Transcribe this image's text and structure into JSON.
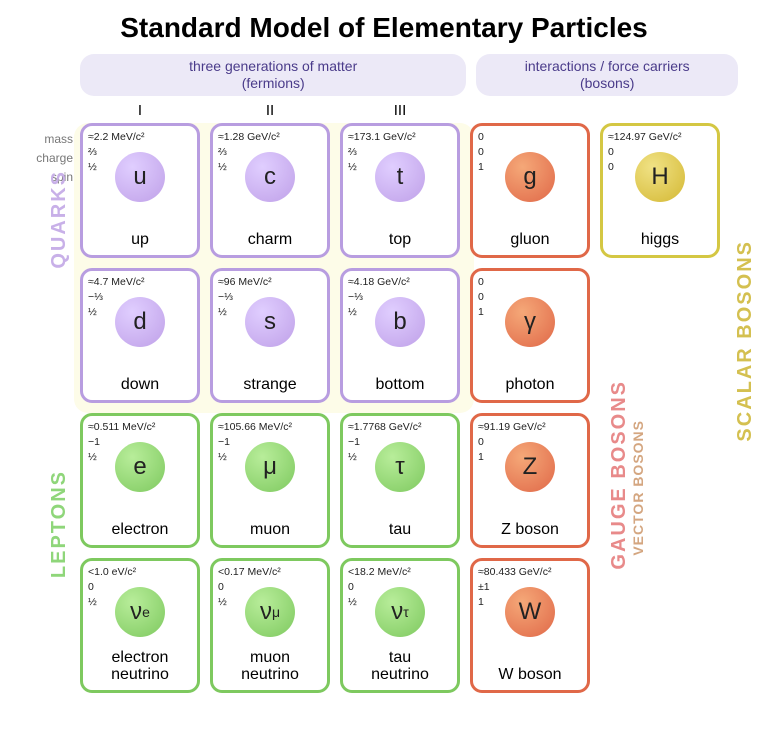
{
  "title": "Standard Model of Elementary Particles",
  "headers": {
    "fermions": {
      "line1": "three generations of matter",
      "line2": "(fermions)",
      "bg": "#ece9f7",
      "color": "#4a3b8a"
    },
    "bosons": {
      "line1": "interactions / force carriers",
      "line2": "(bosons)",
      "bg": "#ece9f7",
      "color": "#4a3b8a"
    }
  },
  "generations": [
    "I",
    "II",
    "III"
  ],
  "side_labels": [
    "mass",
    "charge",
    "spin"
  ],
  "group_labels": {
    "quarks": {
      "text": "QUARKS",
      "color": "#c8b0e8"
    },
    "leptons": {
      "text": "LEPTONS",
      "color": "#8fd67a"
    },
    "gauge": {
      "text": "GAUGE BOSONS",
      "color": "#e88a8a"
    },
    "vector": {
      "text": "VECTOR BOSONS",
      "color": "#d4a680"
    },
    "scalar": {
      "text": "SCALAR BOSONS",
      "color": "#d4c050"
    }
  },
  "colors": {
    "quark_border": "#b89de0",
    "lepton_border": "#7ec95f",
    "gauge_border": "#e06848",
    "higgs_border": "#d4c743",
    "quark_ball": "radial-gradient(circle at 35% 30%, #e0ceff, #bfa0e8)",
    "lepton_ball": "radial-gradient(circle at 35% 30%, #b8ed9a, #7ec95f)",
    "gauge_ball": "radial-gradient(circle at 35% 30%, #f5a878, #e06848)",
    "higgs_ball": "radial-gradient(circle at 35% 30%, #f0e285, #d4b833)"
  },
  "particles": [
    [
      {
        "sym": "u",
        "name": "up",
        "mass": "≈2.2 MeV/c²",
        "charge": "⅔",
        "spin": "½",
        "kind": "quark"
      },
      {
        "sym": "c",
        "name": "charm",
        "mass": "≈1.28 GeV/c²",
        "charge": "⅔",
        "spin": "½",
        "kind": "quark"
      },
      {
        "sym": "t",
        "name": "top",
        "mass": "≈173.1 GeV/c²",
        "charge": "⅔",
        "spin": "½",
        "kind": "quark"
      },
      {
        "sym": "g",
        "name": "gluon",
        "mass": "0",
        "charge": "0",
        "spin": "1",
        "kind": "gauge"
      },
      {
        "sym": "H",
        "name": "higgs",
        "mass": "≈124.97 GeV/c²",
        "charge": "0",
        "spin": "0",
        "kind": "higgs"
      }
    ],
    [
      {
        "sym": "d",
        "name": "down",
        "mass": "≈4.7 MeV/c²",
        "charge": "−⅓",
        "spin": "½",
        "kind": "quark"
      },
      {
        "sym": "s",
        "name": "strange",
        "mass": "≈96 MeV/c²",
        "charge": "−⅓",
        "spin": "½",
        "kind": "quark"
      },
      {
        "sym": "b",
        "name": "bottom",
        "mass": "≈4.18 GeV/c²",
        "charge": "−⅓",
        "spin": "½",
        "kind": "quark"
      },
      {
        "sym": "γ",
        "name": "photon",
        "mass": "0",
        "charge": "0",
        "spin": "1",
        "kind": "gauge"
      }
    ],
    [
      {
        "sym": "e",
        "name": "electron",
        "mass": "≈0.511 MeV/c²",
        "charge": "−1",
        "spin": "½",
        "kind": "lepton"
      },
      {
        "sym": "μ",
        "name": "muon",
        "mass": "≈105.66 MeV/c²",
        "charge": "−1",
        "spin": "½",
        "kind": "lepton"
      },
      {
        "sym": "τ",
        "name": "tau",
        "mass": "≈1.7768 GeV/c²",
        "charge": "−1",
        "spin": "½",
        "kind": "lepton"
      },
      {
        "sym": "Z",
        "name": "Z boson",
        "mass": "≈91.19 GeV/c²",
        "charge": "0",
        "spin": "1",
        "kind": "gauge"
      }
    ],
    [
      {
        "sym": "νe",
        "name": "electron\nneutrino",
        "mass": "<1.0 eV/c²",
        "charge": "0",
        "spin": "½",
        "kind": "lepton",
        "sub": "e"
      },
      {
        "sym": "νμ",
        "name": "muon\nneutrino",
        "mass": "<0.17 MeV/c²",
        "charge": "0",
        "spin": "½",
        "kind": "lepton",
        "sub": "μ"
      },
      {
        "sym": "ντ",
        "name": "tau\nneutrino",
        "mass": "<18.2 MeV/c²",
        "charge": "0",
        "spin": "½",
        "kind": "lepton",
        "sub": "τ"
      },
      {
        "sym": "W",
        "name": "W boson",
        "mass": "≈80.433 GeV/c²",
        "charge": "±1",
        "spin": "1",
        "kind": "gauge"
      }
    ]
  ]
}
